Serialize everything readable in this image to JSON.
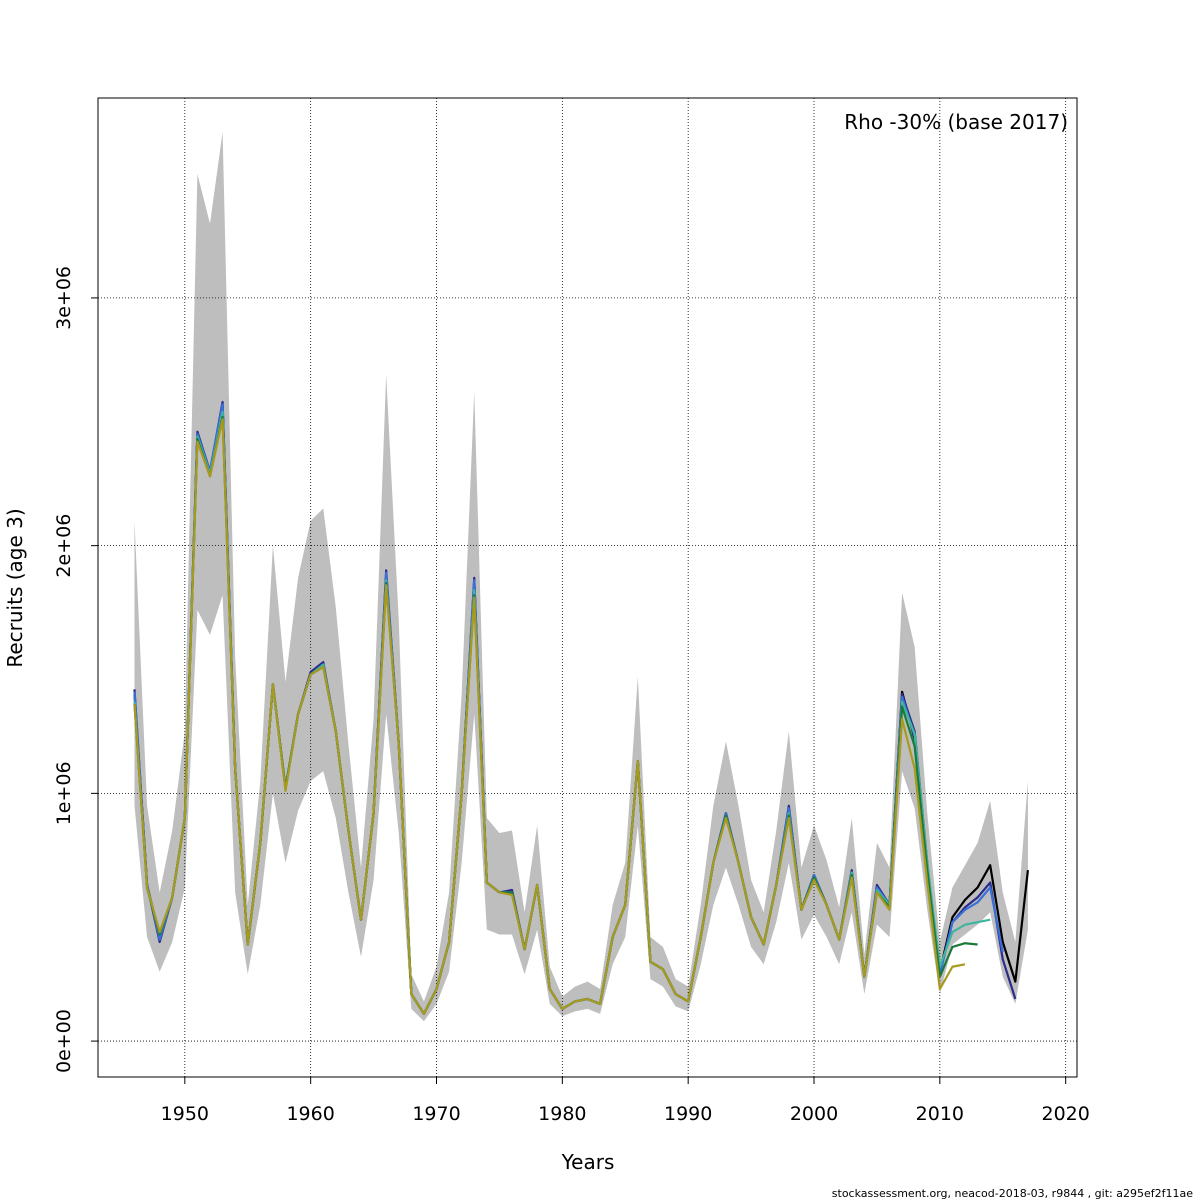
{
  "chart_data": {
    "type": "line",
    "annotation": "Rho -30% (base 2017)",
    "xlabel": "Years",
    "ylabel": "Recruits (age 3)",
    "footer": "stockassessment.org, neacod-2018-03, r9844 , git: a295ef2f11ae",
    "grid": true,
    "xlim": [
      1943.1,
      2020.9
    ],
    "ylim": [
      -145000,
      3807000
    ],
    "xticks": [
      1950,
      1960,
      1970,
      1980,
      1990,
      2000,
      2010,
      2020
    ],
    "yticks": [
      {
        "value": 0,
        "label": "0e+00"
      },
      {
        "value": 1000000,
        "label": "1e+06"
      },
      {
        "value": 2000000,
        "label": "2e+06"
      },
      {
        "value": 3000000,
        "label": "3e+06"
      }
    ],
    "x": [
      1946,
      1947,
      1948,
      1949,
      1950,
      1951,
      1952,
      1953,
      1954,
      1955,
      1956,
      1957,
      1958,
      1959,
      1960,
      1961,
      1962,
      1963,
      1964,
      1965,
      1966,
      1967,
      1968,
      1969,
      1970,
      1971,
      1972,
      1973,
      1974,
      1975,
      1976,
      1977,
      1978,
      1979,
      1980,
      1981,
      1982,
      1983,
      1984,
      1985,
      1986,
      1987,
      1988,
      1989,
      1990,
      1991,
      1992,
      1993,
      1994,
      1995,
      1996,
      1997,
      1998,
      1999,
      2000,
      2001,
      2002,
      2003,
      2004,
      2005,
      2006,
      2007,
      2008,
      2009,
      2010,
      2011,
      2012,
      2013,
      2014,
      2015,
      2016,
      2017
    ],
    "band": {
      "color": "#bebebe",
      "upper": [
        2100000,
        950000,
        600000,
        850000,
        1250000,
        3500000,
        3300000,
        3670000,
        1550000,
        550000,
        1050000,
        2000000,
        1450000,
        1870000,
        2100000,
        2150000,
        1750000,
        1200000,
        700000,
        1300000,
        2690000,
        1700000,
        270000,
        160000,
        300000,
        600000,
        1400000,
        2620000,
        900000,
        840000,
        850000,
        520000,
        870000,
        300000,
        180000,
        220000,
        240000,
        210000,
        550000,
        720000,
        1470000,
        420000,
        380000,
        250000,
        220000,
        550000,
        950000,
        1210000,
        950000,
        650000,
        520000,
        850000,
        1250000,
        700000,
        870000,
        730000,
        540000,
        900000,
        350000,
        800000,
        700000,
        1810000,
        1590000,
        920000,
        400000,
        620000,
        710000,
        800000,
        970000,
        600000,
        400000,
        1050000
      ],
      "lower": [
        950000,
        420000,
        280000,
        400000,
        620000,
        1740000,
        1640000,
        1800000,
        600000,
        270000,
        550000,
        1000000,
        720000,
        930000,
        1050000,
        1090000,
        900000,
        600000,
        340000,
        650000,
        1320000,
        840000,
        130000,
        80000,
        150000,
        280000,
        720000,
        1320000,
        450000,
        430000,
        430000,
        270000,
        450000,
        150000,
        100000,
        120000,
        130000,
        110000,
        310000,
        420000,
        870000,
        250000,
        220000,
        140000,
        120000,
        310000,
        550000,
        700000,
        550000,
        380000,
        310000,
        480000,
        720000,
        410000,
        510000,
        420000,
        310000,
        520000,
        190000,
        470000,
        420000,
        1090000,
        940000,
        530000,
        190000,
        390000,
        430000,
        470000,
        520000,
        260000,
        150000,
        450000
      ]
    },
    "series": [
      {
        "color": "#000000",
        "values": [
          1400000,
          630000,
          420000,
          580000,
          900000,
          2450000,
          2300000,
          2560000,
          1100000,
          390000,
          800000,
          1440000,
          1020000,
          1320000,
          1480000,
          1520000,
          1250000,
          850000,
          490000,
          920000,
          1880000,
          1200000,
          190000,
          110000,
          210000,
          400000,
          1000000,
          1850000,
          640000,
          600000,
          600000,
          370000,
          630000,
          210000,
          130000,
          160000,
          170000,
          150000,
          420000,
          550000,
          1130000,
          320000,
          290000,
          190000,
          160000,
          420000,
          720000,
          920000,
          720000,
          500000,
          390000,
          630000,
          940000,
          530000,
          670000,
          550000,
          410000,
          680000,
          260000,
          620000,
          550000,
          1410000,
          1220000,
          700000,
          280000,
          500000,
          570000,
          620000,
          710000,
          400000,
          240000,
          690000
        ]
      },
      {
        "color": "#2b2b8c",
        "values": [
          1420000,
          630000,
          400000,
          580000,
          900000,
          2460000,
          2300000,
          2580000,
          1100000,
          390000,
          800000,
          1440000,
          1020000,
          1320000,
          1490000,
          1530000,
          1250000,
          850000,
          490000,
          920000,
          1900000,
          1200000,
          190000,
          110000,
          210000,
          400000,
          1000000,
          1870000,
          640000,
          600000,
          610000,
          370000,
          630000,
          210000,
          130000,
          160000,
          170000,
          150000,
          420000,
          550000,
          1130000,
          320000,
          290000,
          190000,
          160000,
          420000,
          720000,
          920000,
          720000,
          500000,
          390000,
          630000,
          950000,
          530000,
          670000,
          550000,
          410000,
          690000,
          260000,
          630000,
          550000,
          1400000,
          1250000,
          720000,
          270000,
          480000,
          540000,
          580000,
          640000,
          330000,
          170000,
          null
        ]
      },
      {
        "color": "#3a6fd8",
        "values": [
          1410000,
          630000,
          410000,
          580000,
          900000,
          2450000,
          2300000,
          2570000,
          1100000,
          390000,
          800000,
          1440000,
          1020000,
          1320000,
          1480000,
          1520000,
          1250000,
          850000,
          490000,
          920000,
          1890000,
          1200000,
          190000,
          110000,
          210000,
          400000,
          1000000,
          1860000,
          640000,
          600000,
          600000,
          370000,
          630000,
          210000,
          130000,
          160000,
          170000,
          150000,
          420000,
          550000,
          1130000,
          320000,
          290000,
          190000,
          160000,
          420000,
          720000,
          920000,
          720000,
          500000,
          390000,
          630000,
          940000,
          530000,
          670000,
          550000,
          410000,
          680000,
          260000,
          620000,
          550000,
          1390000,
          1230000,
          710000,
          270000,
          480000,
          530000,
          560000,
          620000,
          360000,
          null,
          null
        ]
      },
      {
        "color": "#3fb5a0",
        "values": [
          1370000,
          620000,
          430000,
          580000,
          900000,
          2440000,
          2290000,
          2540000,
          1100000,
          390000,
          800000,
          1440000,
          1020000,
          1320000,
          1480000,
          1520000,
          1250000,
          850000,
          490000,
          920000,
          1860000,
          1200000,
          190000,
          110000,
          210000,
          400000,
          1000000,
          1820000,
          640000,
          600000,
          600000,
          370000,
          630000,
          210000,
          130000,
          160000,
          170000,
          150000,
          420000,
          550000,
          1130000,
          320000,
          290000,
          190000,
          160000,
          420000,
          720000,
          910000,
          720000,
          500000,
          390000,
          630000,
          920000,
          530000,
          660000,
          550000,
          410000,
          680000,
          260000,
          610000,
          550000,
          1370000,
          1240000,
          720000,
          300000,
          440000,
          470000,
          480000,
          490000,
          null,
          null,
          null
        ]
      },
      {
        "color": "#1a7a3a",
        "values": [
          1360000,
          620000,
          430000,
          580000,
          900000,
          2430000,
          2280000,
          2520000,
          1100000,
          390000,
          800000,
          1440000,
          1020000,
          1320000,
          1480000,
          1510000,
          1250000,
          850000,
          490000,
          920000,
          1850000,
          1200000,
          190000,
          110000,
          210000,
          400000,
          1000000,
          1800000,
          640000,
          600000,
          600000,
          370000,
          630000,
          210000,
          130000,
          160000,
          170000,
          150000,
          420000,
          550000,
          1130000,
          320000,
          290000,
          190000,
          160000,
          420000,
          720000,
          910000,
          720000,
          500000,
          390000,
          630000,
          910000,
          530000,
          660000,
          550000,
          410000,
          670000,
          260000,
          600000,
          540000,
          1350000,
          1190000,
          690000,
          260000,
          380000,
          395000,
          390000,
          null,
          null,
          null,
          null
        ]
      },
      {
        "color": "#a89a20",
        "values": [
          1360000,
          620000,
          440000,
          580000,
          900000,
          2420000,
          2280000,
          2510000,
          1100000,
          390000,
          800000,
          1440000,
          1010000,
          1320000,
          1480000,
          1510000,
          1250000,
          850000,
          490000,
          920000,
          1840000,
          1200000,
          190000,
          110000,
          210000,
          400000,
          1000000,
          1790000,
          640000,
          600000,
          590000,
          370000,
          630000,
          210000,
          130000,
          160000,
          170000,
          150000,
          420000,
          550000,
          1130000,
          320000,
          290000,
          190000,
          160000,
          420000,
          720000,
          900000,
          720000,
          500000,
          390000,
          630000,
          900000,
          530000,
          650000,
          550000,
          410000,
          660000,
          260000,
          600000,
          530000,
          1300000,
          1100000,
          640000,
          210000,
          300000,
          310000,
          null,
          null,
          null,
          null,
          null
        ]
      }
    ]
  }
}
